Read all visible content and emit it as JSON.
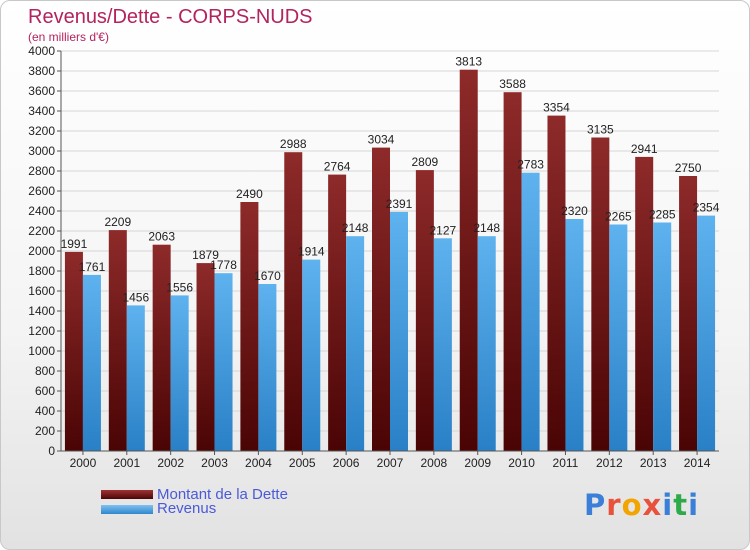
{
  "header": {
    "title": "Revenus/Dette - CORPS-NUDS",
    "subtitle": "(en milliers d'€)"
  },
  "logo": {
    "text": "Proxiti",
    "letter_colors": [
      "#3b7fd8",
      "#e8513b",
      "#f2a400",
      "#e8513b",
      "#3b7fd8",
      "#2eaa4a",
      "#3b7fd8"
    ]
  },
  "legend": {
    "items": [
      {
        "label": "Montant de la Dette",
        "color": "#7a1a1a"
      },
      {
        "label": "Revenus",
        "color": "#4aa3e4"
      }
    ]
  },
  "chart_data": {
    "type": "bar",
    "title": "Revenus/Dette - CORPS-NUDS",
    "subtitle": "(en milliers d'€)",
    "categories": [
      "2000",
      "2001",
      "2002",
      "2003",
      "2004",
      "2005",
      "2006",
      "2007",
      "2008",
      "2009",
      "2010",
      "2011",
      "2012",
      "2013",
      "2014"
    ],
    "series": [
      {
        "name": "Montant de la Dette",
        "color": "#7a1a1a",
        "values": [
          1991,
          2209,
          2063,
          1879,
          2490,
          2988,
          2764,
          3034,
          2809,
          3813,
          3588,
          3354,
          3135,
          2941,
          2750
        ]
      },
      {
        "name": "Revenus",
        "color": "#4aa3e4",
        "values": [
          1761,
          1456,
          1556,
          1778,
          1670,
          1914,
          2148,
          2391,
          2127,
          2148,
          2783,
          2320,
          2265,
          2285,
          2354
        ]
      }
    ],
    "ylim": [
      0,
      4000
    ],
    "ytick_step": 200,
    "grid": true,
    "legend_position": "bottom-left"
  }
}
